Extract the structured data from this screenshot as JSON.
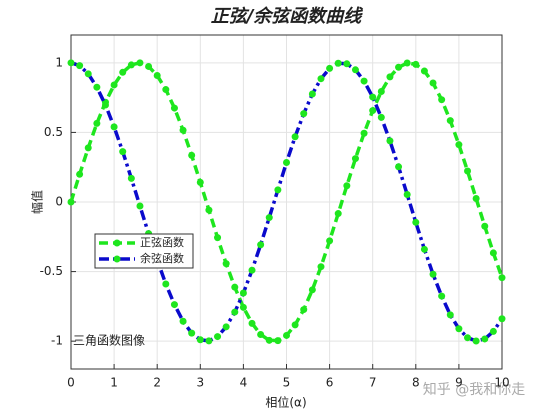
{
  "chart_data": {
    "type": "line",
    "title": "正弦/余弦函数曲线",
    "xlabel": "相位(α)",
    "ylabel": "幅值",
    "annotation": "三角函数图像",
    "watermark": "知乎 @我和你走",
    "x": [
      0,
      0.2,
      0.4,
      0.6,
      0.8,
      1,
      1.2,
      1.4,
      1.6,
      1.8,
      2,
      2.2,
      2.4,
      2.6,
      2.8,
      3,
      3.2,
      3.4,
      3.6,
      3.8,
      4,
      4.2,
      4.4,
      4.6,
      4.8,
      5,
      5.2,
      5.4,
      5.6,
      5.8,
      6,
      6.2,
      6.4,
      6.6,
      6.8,
      7,
      7.2,
      7.4,
      7.6,
      7.8,
      8,
      8.2,
      8.4,
      8.6,
      8.8,
      9,
      9.2,
      9.4,
      9.6,
      9.8,
      10
    ],
    "series": [
      {
        "name": "正弦函数",
        "color": "#1ee61e",
        "marker_color": "#1ee61e",
        "dash": "dashed",
        "values": [
          0,
          0.199,
          0.389,
          0.565,
          0.717,
          0.841,
          0.932,
          0.985,
          1.0,
          0.974,
          0.909,
          0.808,
          0.675,
          0.516,
          0.335,
          0.141,
          -0.058,
          -0.256,
          -0.443,
          -0.612,
          -0.757,
          -0.872,
          -0.952,
          -0.994,
          -0.996,
          -0.959,
          -0.883,
          -0.773,
          -0.631,
          -0.465,
          -0.279,
          -0.083,
          0.117,
          0.312,
          0.494,
          0.657,
          0.794,
          0.899,
          0.968,
          0.999,
          0.989,
          0.941,
          0.855,
          0.735,
          0.585,
          0.412,
          0.223,
          0.025,
          -0.174,
          -0.366,
          -0.544
        ]
      },
      {
        "name": "余弦函数",
        "color": "#0a0acc",
        "marker_color": "#1ee61e",
        "dash": "dashdot",
        "values": [
          1,
          0.98,
          0.921,
          0.825,
          0.697,
          0.54,
          0.362,
          0.17,
          -0.029,
          -0.227,
          -0.416,
          -0.589,
          -0.737,
          -0.857,
          -0.942,
          -0.99,
          -0.998,
          -0.967,
          -0.897,
          -0.791,
          -0.654,
          -0.49,
          -0.307,
          -0.112,
          0.087,
          0.284,
          0.469,
          0.635,
          0.776,
          0.886,
          0.96,
          0.997,
          0.993,
          0.95,
          0.869,
          0.754,
          0.608,
          0.439,
          0.253,
          0.054,
          -0.146,
          -0.34,
          -0.519,
          -0.676,
          -0.811,
          -0.911,
          -0.975,
          -0.999,
          -0.984,
          -0.93,
          -0.839
        ]
      }
    ],
    "xlim": [
      0,
      10
    ],
    "xticks": [
      0,
      1,
      2,
      3,
      4,
      5,
      6,
      7,
      8,
      9,
      10
    ],
    "ylim": [
      -1.2,
      1.2
    ],
    "yticks": [
      -1,
      -0.5,
      0,
      0.5,
      1
    ],
    "grid": true
  }
}
